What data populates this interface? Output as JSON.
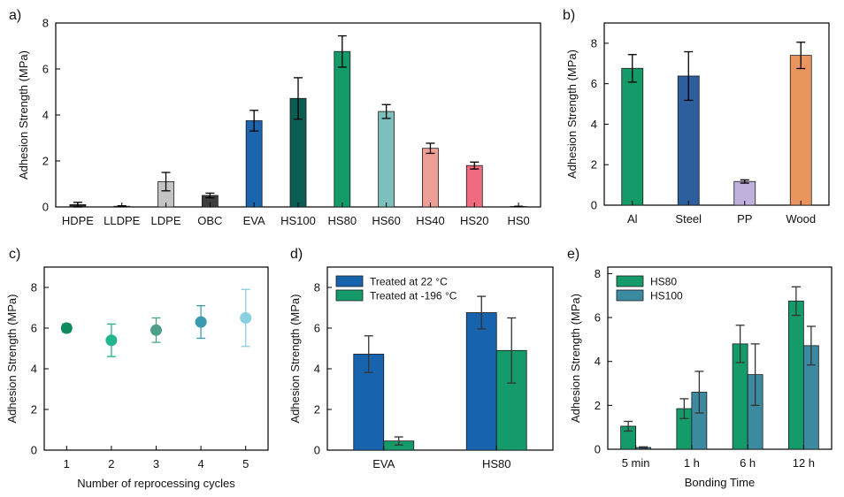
{
  "panels": [
    {
      "label": "a)",
      "type": "bar",
      "ylabel": "Adhesion Strength (MPa)",
      "xlabel": "",
      "ylim": [
        0,
        8
      ],
      "yticks": [
        0,
        2,
        4,
        6,
        8
      ],
      "categories": [
        "HDPE",
        "LLDPE",
        "LDPE",
        "OBC",
        "EVA",
        "HS100",
        "HS80",
        "HS60",
        "HS40",
        "HS20",
        "HS0"
      ],
      "values": [
        0.1,
        0.03,
        1.1,
        0.5,
        3.75,
        4.72,
        6.76,
        4.15,
        2.55,
        1.8,
        0.02
      ],
      "errors": [
        0.1,
        0.02,
        0.4,
        0.1,
        0.45,
        0.9,
        0.68,
        0.3,
        0.22,
        0.15,
        0.01
      ],
      "colors": [
        "#2a2a2a",
        "#3a3a3a",
        "#c4c4c4",
        "#3e3e3e",
        "#1c64ad",
        "#0b5c52",
        "#159a6a",
        "#7cbfbc",
        "#ee9f95",
        "#f06b80",
        "#3a3a3a"
      ]
    },
    {
      "label": "b)",
      "type": "bar",
      "ylabel": "Adhesion Strength (MPa)",
      "xlabel": "",
      "ylim": [
        0,
        9
      ],
      "yticks": [
        0,
        2,
        4,
        6,
        8
      ],
      "categories": [
        "Al",
        "Steel",
        "PP",
        "Wood"
      ],
      "values": [
        6.76,
        6.38,
        1.17,
        7.4
      ],
      "errors": [
        0.68,
        1.2,
        0.08,
        0.65
      ],
      "colors": [
        "#159a6a",
        "#2d5e9d",
        "#c0b0dc",
        "#e9965e"
      ]
    },
    {
      "label": "c)",
      "type": "scatter",
      "ylabel": "Adhesion Strength (MPa)",
      "xlabel": "Number of reprocessing cycles",
      "ylim": [
        0,
        9
      ],
      "yticks": [
        0,
        2,
        4,
        6,
        8
      ],
      "xticks": [
        1,
        2,
        3,
        4,
        5
      ],
      "x": [
        1,
        2,
        3,
        4,
        5
      ],
      "values": [
        6.0,
        5.4,
        5.9,
        6.3,
        6.5
      ],
      "errors": [
        0.2,
        0.8,
        0.6,
        0.8,
        1.4
      ],
      "colors": [
        "#0f8a5e",
        "#22b48f",
        "#4f9e8c",
        "#3a9bb0",
        "#88cfe0"
      ]
    },
    {
      "label": "d)",
      "type": "grouped-bar",
      "ylabel": "Adhesion Strength (MPa)",
      "xlabel": "",
      "ylim": [
        0,
        9
      ],
      "yticks": [
        0,
        2,
        4,
        6,
        8
      ],
      "categories": [
        "EVA",
        "HS80"
      ],
      "legend": "top-left",
      "series": [
        {
          "name": "Treated at 22 °C",
          "color": "#1763ae",
          "values": [
            4.72,
            6.76
          ],
          "errors": [
            0.9,
            0.8
          ]
        },
        {
          "name": "Treated at -196 °C",
          "color": "#159a6a",
          "values": [
            0.45,
            4.9
          ],
          "errors": [
            0.2,
            1.6
          ]
        }
      ]
    },
    {
      "label": "e)",
      "type": "grouped-bar",
      "ylabel": "Adhesion Strength (MPa)",
      "xlabel": "Bonding Time",
      "ylim": [
        0,
        8.3
      ],
      "yticks": [
        0,
        2,
        4,
        6,
        8
      ],
      "categories": [
        "5 min",
        "1 h",
        "6 h",
        "12 h"
      ],
      "legend": "top-left",
      "series": [
        {
          "name": "HS80",
          "color": "#159a6a",
          "values": [
            1.05,
            1.85,
            4.8,
            6.75
          ],
          "errors": [
            0.22,
            0.45,
            0.85,
            0.65
          ]
        },
        {
          "name": "HS100",
          "color": "#3c8aa0",
          "values": [
            0.08,
            2.6,
            3.4,
            4.72
          ],
          "errors": [
            0.03,
            0.95,
            1.4,
            0.88
          ]
        }
      ]
    }
  ]
}
